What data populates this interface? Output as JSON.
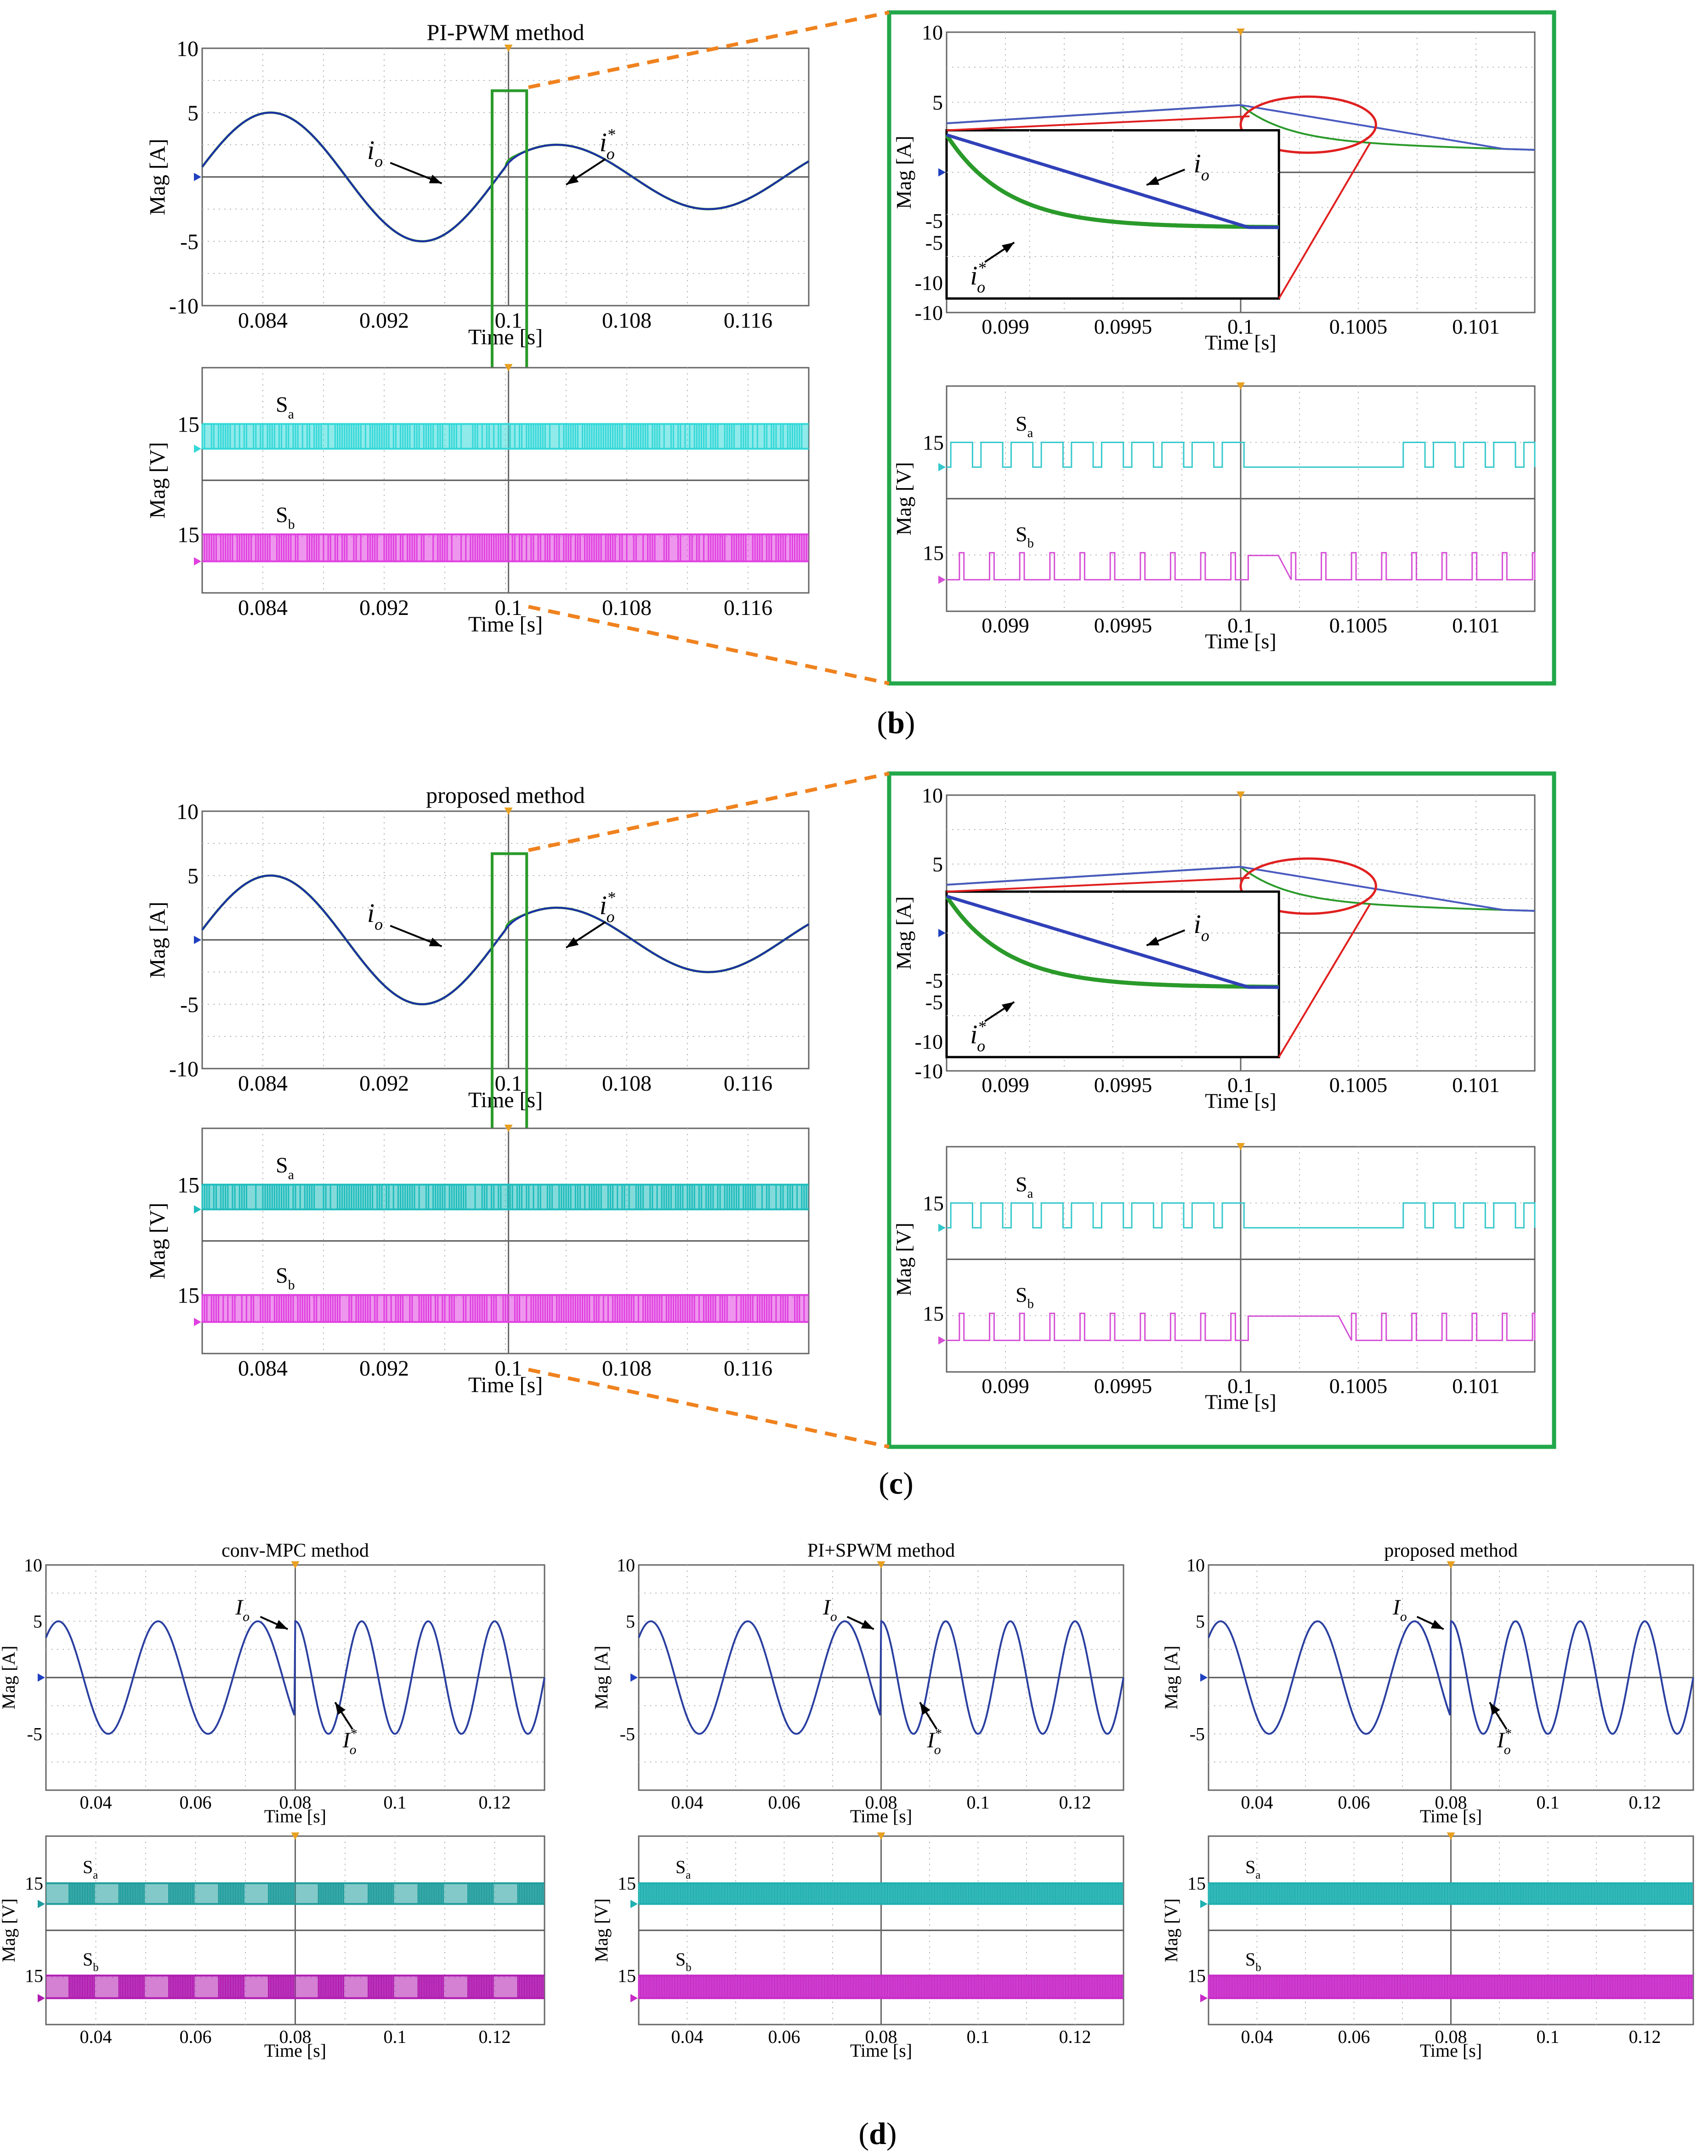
{
  "figure": {
    "panel_labels": {
      "b": "(b)",
      "c": "(c)",
      "d": "(d)"
    }
  },
  "chart_data": [
    {
      "id": "b-current",
      "type": "line",
      "title": "PI-PWM method",
      "xlabel": "Time [s]",
      "ylabel": "Mag [A]",
      "xlim": [
        0.08,
        0.12
      ],
      "ylim": [
        -10,
        10
      ],
      "xticks": [
        "0.084",
        "0.092",
        "0.1",
        "0.108",
        "0.116"
      ],
      "yticks": [
        "10",
        "5",
        "-5",
        "-10"
      ],
      "annotations": [
        {
          "sym": "i",
          "sub": "o",
          "sup": ""
        },
        {
          "sym": "i",
          "sub": "o",
          "sup": "*"
        }
      ],
      "series": [
        {
          "name": "io",
          "color": "#1f2fa8",
          "step_time": 0.1,
          "amp_before": 5.0,
          "amp_after": 2.5,
          "decay_tau": 0.0004
        },
        {
          "name": "io*",
          "color": "#2a9a2a",
          "step_time": 0.1,
          "amp_before": 5.0,
          "amp_after": 2.5,
          "decay_tau": 0.0001
        }
      ]
    },
    {
      "id": "b-switching",
      "type": "line",
      "xlabel": "Time [s]",
      "ylabel": "Mag [V]",
      "xlim": [
        0.08,
        0.12
      ],
      "xticks": [
        "0.084",
        "0.092",
        "0.1",
        "0.108",
        "0.116"
      ],
      "level_labels": [
        "15",
        "15"
      ],
      "series": [
        {
          "name": "Sa",
          "label_base": "S",
          "label_sub": "a",
          "color": "#35d8d8",
          "high": 15,
          "low": 0
        },
        {
          "name": "Sb",
          "label_base": "S",
          "label_sub": "b",
          "color": "#e040e0",
          "high": 15,
          "low": 0
        }
      ]
    },
    {
      "id": "b-zoom-current",
      "type": "line",
      "xlabel": "Time [s]",
      "ylabel": "Mag [A]",
      "xlim": [
        0.09875,
        0.10125
      ],
      "ylim": [
        -10,
        10
      ],
      "xticks": [
        "0.099",
        "0.0995",
        "0.1",
        "0.1005",
        "0.101"
      ],
      "yticks": [
        "10",
        "5",
        "-5",
        "-10"
      ],
      "inset_yticks": [
        "-5",
        "-10"
      ],
      "annotations": [
        {
          "sym": "i",
          "sub": "o",
          "sup": ""
        },
        {
          "sym": "i",
          "sub": "o",
          "sup": "*"
        }
      ]
    },
    {
      "id": "b-zoom-switching",
      "type": "line",
      "xlabel": "Time [s]",
      "ylabel": "Mag [V]",
      "xlim": [
        0.09875,
        0.10125
      ],
      "xticks": [
        "0.099",
        "0.0995",
        "0.1",
        "0.1005",
        "0.101"
      ],
      "level_labels": [
        "15",
        "15"
      ],
      "series": [
        {
          "name": "Sa",
          "label_base": "S",
          "label_sub": "a",
          "color": "#35c8cc"
        },
        {
          "name": "Sb",
          "label_base": "S",
          "label_sub": "b",
          "color": "#d650d6"
        }
      ]
    },
    {
      "id": "c-current",
      "type": "line",
      "title": "proposed method",
      "xlabel": "Time [s]",
      "ylabel": "Mag [A]",
      "xlim": [
        0.08,
        0.12
      ],
      "ylim": [
        -10,
        10
      ],
      "xticks": [
        "0.084",
        "0.092",
        "0.1",
        "0.108",
        "0.116"
      ],
      "yticks": [
        "10",
        "5",
        "-5",
        "-10"
      ],
      "annotations": [
        {
          "sym": "i",
          "sub": "o",
          "sup": ""
        },
        {
          "sym": "i",
          "sub": "o",
          "sup": "*"
        }
      ],
      "series": [
        {
          "name": "io",
          "color": "#1f2fa8",
          "step_time": 0.1,
          "amp_before": 5.0,
          "amp_after": 2.5
        },
        {
          "name": "io*",
          "color": "#2a9a2a",
          "step_time": 0.1,
          "amp_before": 5.0,
          "amp_after": 2.5
        }
      ]
    },
    {
      "id": "c-switching",
      "type": "line",
      "xlabel": "Time [s]",
      "ylabel": "Mag [V]",
      "xlim": [
        0.08,
        0.12
      ],
      "xticks": [
        "0.084",
        "0.092",
        "0.1",
        "0.108",
        "0.116"
      ],
      "level_labels": [
        "15",
        "15"
      ],
      "series": [
        {
          "name": "Sa",
          "label_base": "S",
          "label_sub": "a",
          "color": "#1fbcbc"
        },
        {
          "name": "Sb",
          "label_base": "S",
          "label_sub": "b",
          "color": "#e040e0"
        }
      ]
    },
    {
      "id": "c-zoom-current",
      "type": "line",
      "xlabel": "Time [s]",
      "ylabel": "Mag [A]",
      "xlim": [
        0.09875,
        0.10125
      ],
      "ylim": [
        -10,
        10
      ],
      "xticks": [
        "0.099",
        "0.0995",
        "0.1",
        "0.1005",
        "0.101"
      ],
      "yticks": [
        "10",
        "5",
        "-5",
        "-10"
      ],
      "inset_yticks": [
        "-5",
        "-10"
      ],
      "annotations": [
        {
          "sym": "i",
          "sub": "o",
          "sup": ""
        },
        {
          "sym": "i",
          "sub": "o",
          "sup": "*"
        }
      ]
    },
    {
      "id": "c-zoom-switching",
      "type": "line",
      "xlabel": "Time [s]",
      "ylabel": "Mag [V]",
      "xlim": [
        0.09875,
        0.10125
      ],
      "xticks": [
        "0.099",
        "0.0995",
        "0.1",
        "0.1005",
        "0.101"
      ],
      "level_labels": [
        "15",
        "15"
      ],
      "series": [
        {
          "name": "Sa",
          "label_base": "S",
          "label_sub": "a",
          "color": "#35c8cc"
        },
        {
          "name": "Sb",
          "label_base": "S",
          "label_sub": "b",
          "color": "#d650d6"
        }
      ]
    },
    {
      "id": "d1-current",
      "type": "line",
      "title": "conv-MPC method",
      "xlabel": "Time [s]",
      "ylabel": "Mag [A]",
      "xlim": [
        0.03,
        0.13
      ],
      "ylim": [
        -10,
        10
      ],
      "xticks": [
        "0.04",
        "0.06",
        "0.08",
        "0.1",
        "0.12"
      ],
      "yticks": [
        "10",
        "5",
        "-5"
      ],
      "annotations": [
        {
          "sym": "I",
          "sub": "o",
          "sup": ""
        },
        {
          "sym": "I",
          "sub": "o",
          "sup": "*"
        }
      ],
      "series": [
        {
          "name": "Io",
          "color": "#2a3fa0",
          "freq_before": 50,
          "freq_after": 75,
          "step_time": 0.08,
          "amplitude": 5
        }
      ]
    },
    {
      "id": "d1-switching",
      "type": "line",
      "xlabel": "Time [s]",
      "ylabel": "Mag [V]",
      "xlim": [
        0.03,
        0.13
      ],
      "xticks": [
        "0.04",
        "0.06",
        "0.08",
        "0.1",
        "0.12"
      ],
      "level_labels": [
        "15",
        "15"
      ],
      "series": [
        {
          "name": "Sa",
          "label_base": "S",
          "label_sub": "a",
          "color": "#1f9c9c"
        },
        {
          "name": "Sb",
          "label_base": "S",
          "label_sub": "b",
          "color": "#b01ab0"
        }
      ]
    },
    {
      "id": "d2-current",
      "type": "line",
      "title": "PI+SPWM method",
      "xlabel": "Time [s]",
      "ylabel": "Mag [A]",
      "xlim": [
        0.03,
        0.13
      ],
      "ylim": [
        -10,
        10
      ],
      "xticks": [
        "0.04",
        "0.06",
        "0.08",
        "0.1",
        "0.12"
      ],
      "yticks": [
        "10",
        "5",
        "-5"
      ],
      "annotations": [
        {
          "sym": "I",
          "sub": "o",
          "sup": ""
        },
        {
          "sym": "I",
          "sub": "o",
          "sup": "*"
        }
      ],
      "series": [
        {
          "name": "Io",
          "color": "#2a3fa0",
          "freq_before": 50,
          "freq_after": 75,
          "step_time": 0.08,
          "amplitude": 5
        }
      ]
    },
    {
      "id": "d2-switching",
      "type": "line",
      "xlabel": "Time [s]",
      "ylabel": "Mag [V]",
      "xlim": [
        0.03,
        0.13
      ],
      "xticks": [
        "0.04",
        "0.06",
        "0.08",
        "0.1",
        "0.12"
      ],
      "level_labels": [
        "15",
        "15"
      ],
      "series": [
        {
          "name": "Sa",
          "label_base": "S",
          "label_sub": "a",
          "color": "#1fb0b0"
        },
        {
          "name": "Sb",
          "label_base": "S",
          "label_sub": "b",
          "color": "#c82ac8"
        }
      ]
    },
    {
      "id": "d3-current",
      "type": "line",
      "title": "proposed method",
      "xlabel": "Time [s]",
      "ylabel": "Mag [A]",
      "xlim": [
        0.03,
        0.13
      ],
      "ylim": [
        -10,
        10
      ],
      "xticks": [
        "0.04",
        "0.06",
        "0.08",
        "0.1",
        "0.12"
      ],
      "yticks": [
        "10",
        "5",
        "-5"
      ],
      "annotations": [
        {
          "sym": "I",
          "sub": "o",
          "sup": ""
        },
        {
          "sym": "I",
          "sub": "o",
          "sup": "*"
        }
      ],
      "series": [
        {
          "name": "Io",
          "color": "#2a3fa0",
          "freq_before": 50,
          "freq_after": 75,
          "step_time": 0.08,
          "amplitude": 5
        }
      ]
    },
    {
      "id": "d3-switching",
      "type": "line",
      "xlabel": "Time [s]",
      "ylabel": "Mag [V]",
      "xlim": [
        0.03,
        0.13
      ],
      "xticks": [
        "0.04",
        "0.06",
        "0.08",
        "0.1",
        "0.12"
      ],
      "level_labels": [
        "15",
        "15"
      ],
      "series": [
        {
          "name": "Sa",
          "label_base": "S",
          "label_sub": "a",
          "color": "#1fb0b0"
        },
        {
          "name": "Sb",
          "label_base": "S",
          "label_sub": "b",
          "color": "#c82ac8"
        }
      ]
    }
  ]
}
